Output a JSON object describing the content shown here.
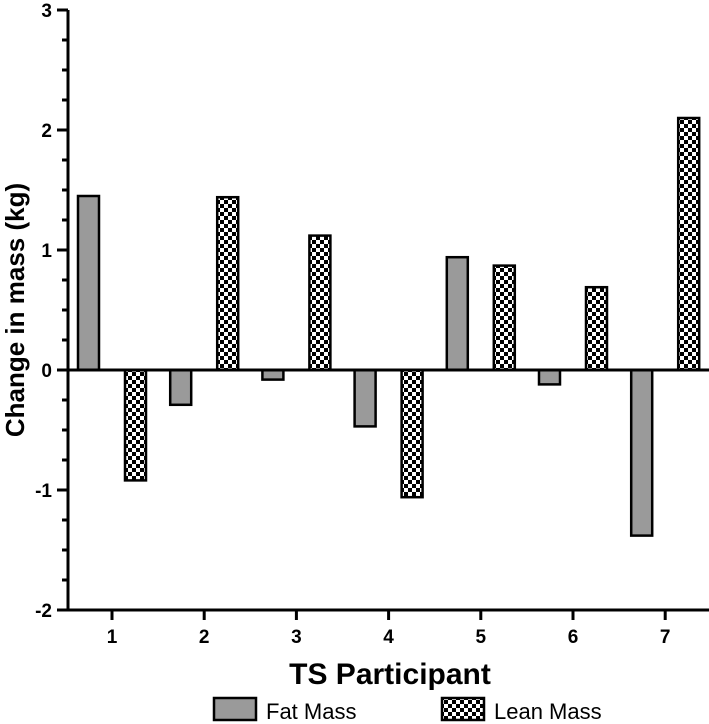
{
  "chart_data": {
    "type": "bar",
    "title": "",
    "xlabel": "TS Participant",
    "ylabel": "Change in mass (kg)",
    "categories": [
      "1",
      "2",
      "3",
      "4",
      "5",
      "6",
      "7"
    ],
    "series": [
      {
        "name": "Fat Mass",
        "values": [
          1.45,
          -0.29,
          -0.08,
          -0.47,
          0.94,
          -0.12,
          -1.38
        ]
      },
      {
        "name": "Lean Mass",
        "values": [
          -0.92,
          1.44,
          1.12,
          -1.06,
          0.87,
          0.69,
          2.1
        ]
      }
    ],
    "ylim": [
      -2,
      3
    ],
    "yticks": [
      -2,
      -1,
      0,
      1,
      2,
      3
    ],
    "grid": false,
    "legend": "bottom"
  },
  "colors": {
    "fat_fill": "#9a9a9a",
    "lean_checker_a": "#000000",
    "lean_checker_b": "#ffffff"
  }
}
